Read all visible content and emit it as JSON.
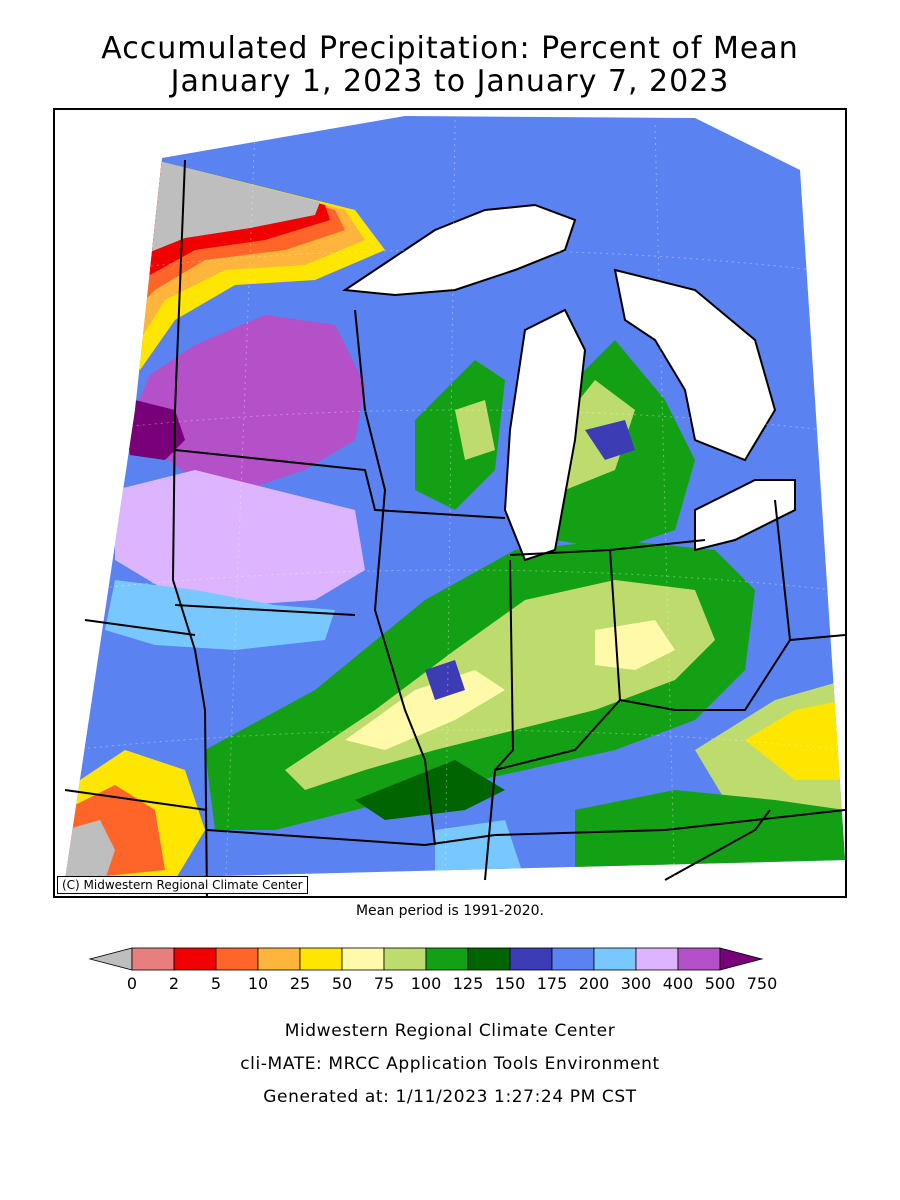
{
  "title": {
    "line1": "Accumulated Precipitation: Percent of Mean",
    "line2": "January 1, 2023 to January 7, 2023"
  },
  "map": {
    "copyright": "(C) Midwestern Regional Climate Center",
    "mean_period_note": "Mean period is 1991-2020."
  },
  "legend": {
    "breaks": [
      "0",
      "2",
      "5",
      "10",
      "25",
      "50",
      "75",
      "100",
      "125",
      "150",
      "175",
      "200",
      "300",
      "400",
      "500",
      "750"
    ],
    "colors": [
      "#bebebe",
      "#e77f7f",
      "#f00000",
      "#ff6428",
      "#ffb43c",
      "#ffe600",
      "#fffaaa",
      "#bedc6e",
      "#14a014",
      "#006400",
      "#3c3cb4",
      "#5a82f0",
      "#78c8ff",
      "#dcb4ff",
      "#b450c8",
      "#780078"
    ]
  },
  "footer": {
    "org": "Midwestern Regional Climate Center",
    "tool": "cli-MATE: MRCC Application Tools Environment",
    "generated": "Generated at: 1/11/2023 1:27:24 PM CST"
  }
}
